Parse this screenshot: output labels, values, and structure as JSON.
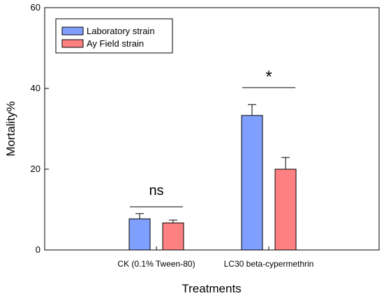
{
  "chart_data": {
    "type": "bar",
    "title": "",
    "xlabel": "Treatments",
    "ylabel": "Mortality%",
    "ylim": [
      0,
      60
    ],
    "yticks": [
      0,
      20,
      40,
      60
    ],
    "grid": false,
    "legend_position": "top-left",
    "categories": [
      "CK (0.1% Tween-80)",
      "LC30 beta-cypermethrin"
    ],
    "series": [
      {
        "name": "Laboratory strain",
        "values": [
          7.7,
          33.3
        ],
        "errors": [
          1.3,
          2.7
        ],
        "color": "#7f9fff"
      },
      {
        "name": "Ay Field strain",
        "values": [
          6.7,
          20.0
        ],
        "errors": [
          0.7,
          2.9
        ],
        "color": "#ff8080"
      }
    ],
    "annotations": [
      {
        "category": "CK (0.1% Tween-80)",
        "text": "ns",
        "line_y": 10.7
      },
      {
        "category": "LC30 beta-cypermethrin",
        "text": "*",
        "line_y": 40.2
      }
    ]
  }
}
